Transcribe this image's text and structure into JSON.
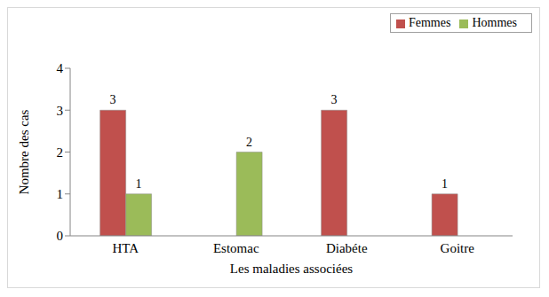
{
  "chart_data": {
    "type": "bar",
    "x_label": "Les maladies associées",
    "y_label": "Nombre des cas",
    "categories": [
      "HTA",
      "Estomac",
      "Diabéte",
      "Goitre"
    ],
    "series": [
      {
        "name": "Femmes",
        "color": "#c0504d",
        "values": [
          3,
          null,
          3,
          1
        ]
      },
      {
        "name": "Hommes",
        "color": "#9bbb59",
        "values": [
          1,
          2,
          null,
          null
        ]
      }
    ],
    "ylim": [
      0,
      4
    ],
    "yticks": [
      0,
      1,
      2,
      3,
      4
    ],
    "grid": false,
    "legend": "top-right",
    "data_labels": true
  }
}
